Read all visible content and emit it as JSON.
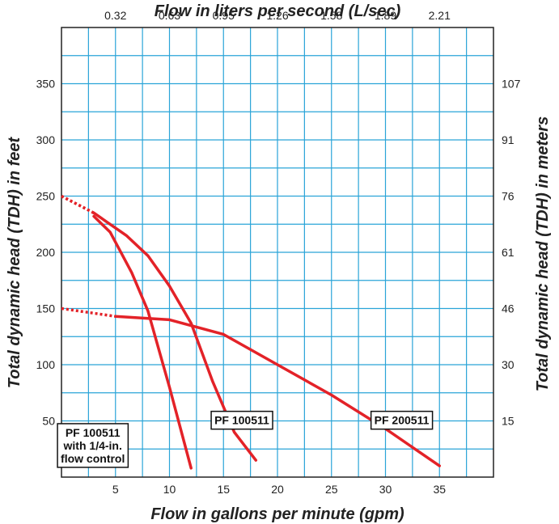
{
  "chart_data": {
    "type": "line",
    "xlabel": "Flow in gallons per minute (gpm)",
    "xlabel_top": "Flow in liters per second (L/sec)",
    "ylabel": "Total dynamic head (TDH) in feet",
    "ylabel_right": "Total dynamic head (TDH) in meters",
    "xlim": [
      0,
      40
    ],
    "ylim": [
      0,
      400
    ],
    "x_ticks": [
      5,
      10,
      15,
      20,
      25,
      30,
      35
    ],
    "y_ticks": [
      50,
      100,
      150,
      200,
      250,
      300,
      350
    ],
    "top_ticks": [
      {
        "gpm": 5,
        "label": "0.32"
      },
      {
        "gpm": 10,
        "label": "0.63"
      },
      {
        "gpm": 15,
        "label": "0.95"
      },
      {
        "gpm": 20,
        "label": "1.26"
      },
      {
        "gpm": 25,
        "label": "1.58"
      },
      {
        "gpm": 30,
        "label": "1.89"
      },
      {
        "gpm": 35,
        "label": "2.21"
      }
    ],
    "right_ticks": [
      {
        "feet": 50,
        "label": "15"
      },
      {
        "feet": 100,
        "label": "30"
      },
      {
        "feet": 150,
        "label": "46"
      },
      {
        "feet": 200,
        "label": "61"
      },
      {
        "feet": 250,
        "label": "76"
      },
      {
        "feet": 300,
        "label": "91"
      },
      {
        "feet": 350,
        "label": "107"
      }
    ],
    "grid": true,
    "grid_minor_step": [
      2.5,
      25
    ],
    "grid_color": "#2aa4d8",
    "line_color": "#e32228",
    "series": [
      {
        "name": "PF 100511\nwith 1/4-in.\nflow control",
        "dashed": [
          [
            0,
            250
          ],
          [
            3,
            235
          ]
        ],
        "values": [
          [
            3,
            232
          ],
          [
            4.5,
            218
          ],
          [
            6.5,
            182
          ],
          [
            8,
            148
          ],
          [
            10,
            80
          ],
          [
            12,
            8
          ]
        ]
      },
      {
        "name": "PF 100511",
        "dashed": [
          [
            0,
            250
          ],
          [
            3,
            235
          ]
        ],
        "values": [
          [
            3,
            235
          ],
          [
            6,
            215
          ],
          [
            8,
            197
          ],
          [
            10,
            170
          ],
          [
            12,
            137
          ],
          [
            14,
            85
          ],
          [
            16,
            40
          ],
          [
            18,
            15
          ]
        ]
      },
      {
        "name": "PF 200511",
        "dashed": [
          [
            0,
            150
          ],
          [
            5,
            143
          ]
        ],
        "values": [
          [
            5,
            143
          ],
          [
            10,
            140
          ],
          [
            15,
            127
          ],
          [
            20,
            100
          ],
          [
            25,
            73
          ],
          [
            30,
            43
          ],
          [
            35,
            10
          ]
        ]
      }
    ],
    "callouts": [
      {
        "series": 0,
        "lines": [
          "PF 100511",
          "with 1/4-in.",
          "flow control"
        ],
        "x": 2.9,
        "y": 13
      },
      {
        "series": 1,
        "lines": [
          "PF 100511"
        ],
        "x": 16.7,
        "y": 47
      },
      {
        "series": 2,
        "lines": [
          "PF 200511"
        ],
        "x": 31.5,
        "y": 47
      }
    ]
  }
}
